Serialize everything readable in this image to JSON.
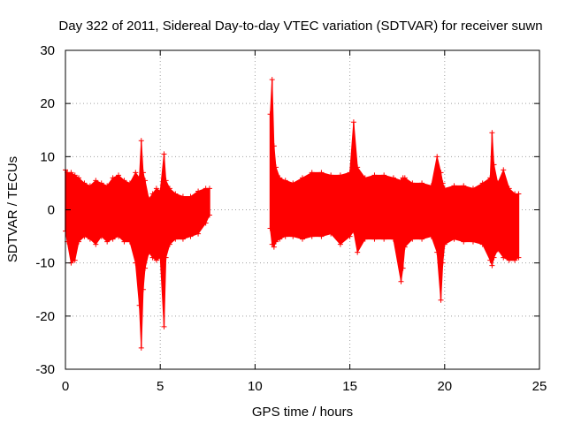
{
  "chart_data": {
    "type": "scatter",
    "title": "Day 322 of 2011, Sidereal Day-to-day VTEC variation (SDTVAR) for receiver suwn",
    "xlabel": "GPS time / hours",
    "ylabel": "SDTVAR / TECUs",
    "xlim": [
      0,
      25
    ],
    "ylim": [
      -30,
      30
    ],
    "xticks": [
      "0",
      "5",
      "10",
      "15",
      "20",
      "25"
    ],
    "yticks": [
      "-30",
      "-20",
      "-10",
      "0",
      "10",
      "20",
      "30"
    ],
    "grid": true,
    "series": [
      {
        "name": "SDTVAR",
        "color": "#ff0000",
        "marker": "plus",
        "x": [
          0.0,
          0.1,
          0.3,
          0.5,
          0.7,
          1.0,
          1.3,
          1.6,
          1.9,
          2.2,
          2.5,
          2.8,
          3.1,
          3.4,
          3.7,
          3.9,
          4.0,
          4.1,
          4.2,
          4.4,
          4.6,
          4.8,
          5.0,
          5.2,
          5.3,
          5.5,
          5.8,
          6.2,
          6.6,
          7.0,
          7.4,
          7.6,
          10.8,
          10.9,
          11.0,
          11.1,
          11.3,
          11.6,
          12.0,
          12.5,
          13.0,
          13.5,
          14.0,
          14.5,
          15.0,
          15.2,
          15.4,
          15.8,
          16.3,
          16.8,
          17.3,
          17.7,
          17.8,
          17.9,
          18.3,
          18.8,
          19.3,
          19.6,
          19.8,
          19.9,
          20.0,
          20.5,
          21.0,
          21.5,
          22.0,
          22.4,
          22.5,
          22.6,
          22.8,
          23.1,
          23.4,
          23.7,
          23.9
        ],
        "high": [
          7.5,
          7.0,
          7.0,
          6.5,
          6.0,
          5.0,
          4.5,
          5.5,
          5.0,
          4.5,
          6.0,
          6.5,
          5.5,
          5.0,
          7.0,
          6.0,
          13.0,
          7.0,
          5.5,
          2.0,
          3.0,
          4.0,
          3.5,
          10.5,
          5.5,
          4.0,
          3.0,
          2.5,
          2.5,
          3.5,
          4.0,
          4.0,
          18.0,
          24.5,
          12.0,
          8.0,
          6.0,
          5.5,
          5.0,
          6.0,
          7.0,
          7.0,
          6.5,
          6.5,
          7.0,
          16.5,
          8.0,
          6.0,
          6.5,
          6.5,
          6.0,
          5.5,
          6.0,
          6.0,
          5.0,
          5.0,
          4.5,
          10.0,
          7.0,
          5.0,
          4.0,
          4.5,
          4.5,
          4.0,
          5.0,
          6.0,
          14.5,
          8.5,
          5.0,
          7.5,
          4.0,
          3.0,
          3.0
        ],
        "low": [
          -4.0,
          -6.0,
          -10.0,
          -9.5,
          -6.0,
          -5.0,
          -5.5,
          -6.5,
          -5.0,
          -6.0,
          -5.5,
          -5.0,
          -6.0,
          -6.0,
          -10.0,
          -18.0,
          -26.0,
          -15.0,
          -11.0,
          -8.0,
          -9.0,
          -9.5,
          -9.0,
          -22.0,
          -9.0,
          -6.5,
          -5.5,
          -5.5,
          -5.0,
          -4.5,
          -2.5,
          -1.0,
          -3.5,
          -6.5,
          -7.0,
          -6.0,
          -5.5,
          -5.0,
          -5.0,
          -5.5,
          -5.0,
          -5.0,
          -4.5,
          -6.5,
          -5.0,
          -4.0,
          -8.0,
          -5.5,
          -5.5,
          -5.5,
          -5.5,
          -13.5,
          -11.0,
          -7.0,
          -5.5,
          -5.5,
          -5.0,
          -8.0,
          -17.0,
          -10.0,
          -6.5,
          -5.5,
          -6.0,
          -6.0,
          -6.5,
          -9.5,
          -10.5,
          -9.0,
          -7.5,
          -9.0,
          -9.5,
          -9.5,
          -9.0
        ]
      }
    ]
  }
}
